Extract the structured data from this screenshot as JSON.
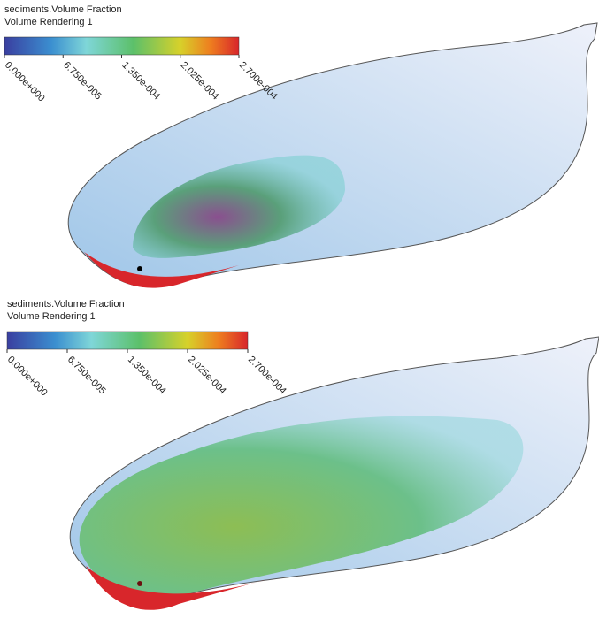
{
  "panels": [
    {
      "title": "sediments.Volume Fraction",
      "subtitle": "Volume Rendering 1",
      "colorbar": {
        "range": [
          0,
          0.00027
        ],
        "ticks": [
          {
            "value": 0,
            "label": "0.000e+000"
          },
          {
            "value": 6.75e-05,
            "label": "6.750e-005"
          },
          {
            "value": 0.000135,
            "label": "1.350e-004"
          },
          {
            "value": 0.0002025,
            "label": "2.025e-004"
          },
          {
            "value": 0.00027,
            "label": "2.700e-004"
          }
        ]
      }
    },
    {
      "title": "sediments.Volume Fraction",
      "subtitle": "Volume Rendering 1",
      "colorbar": {
        "range": [
          0,
          0.00027
        ],
        "ticks": [
          {
            "value": 0,
            "label": "0.000e+000"
          },
          {
            "value": 6.75e-05,
            "label": "6.750e-005"
          },
          {
            "value": 0.000135,
            "label": "1.350e-004"
          },
          {
            "value": 0.0002025,
            "label": "2.025e-004"
          },
          {
            "value": 0.00027,
            "label": "2.700e-004"
          }
        ]
      }
    }
  ]
}
